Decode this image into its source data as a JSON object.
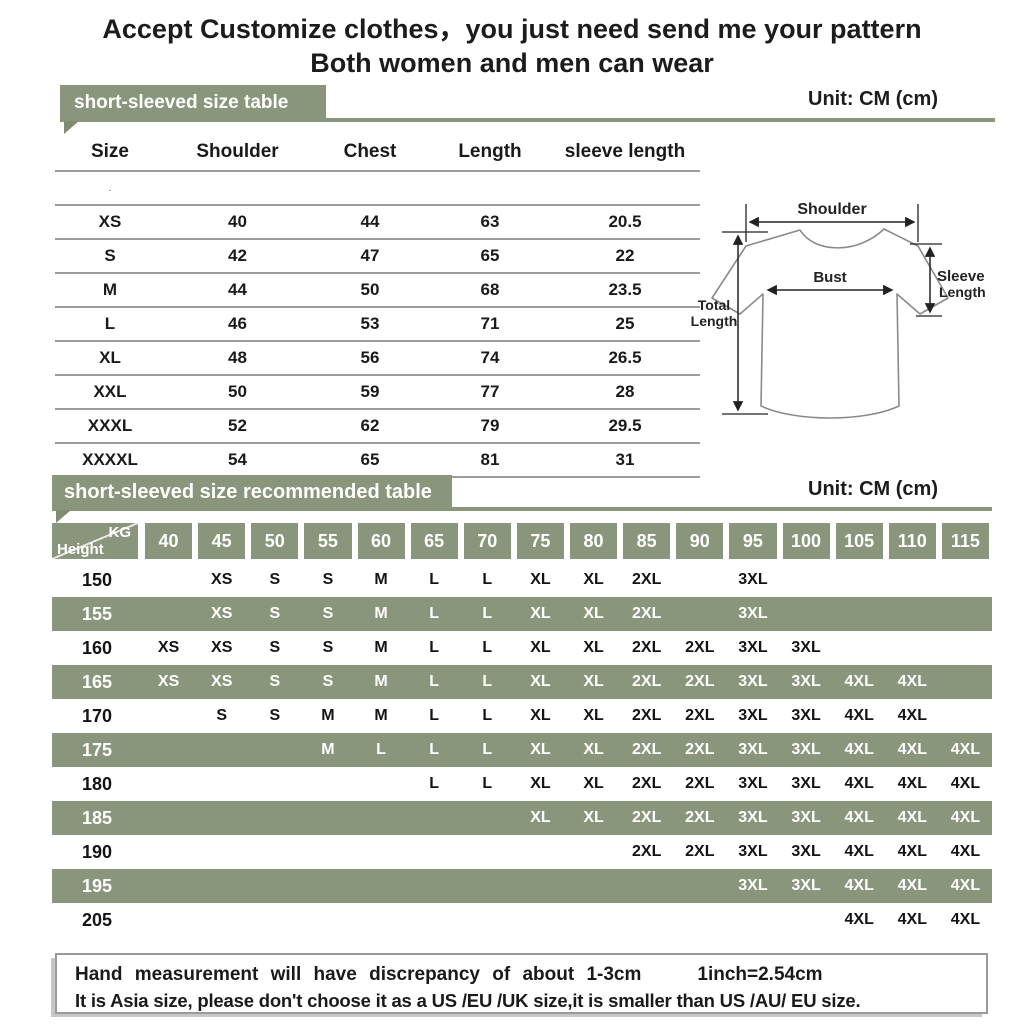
{
  "title": {
    "line1": "Accept Customize clothes，you just need send me your pattern",
    "line2": "Both women and men can wear"
  },
  "size_table": {
    "heading": "short-sleeved size table",
    "unit": "Unit: CM (cm)",
    "columns": [
      "Size",
      "Shoulder",
      "Chest",
      "Length",
      "sleeve length"
    ],
    "blank_dot": ".",
    "rows": [
      {
        "size": "XS",
        "shoulder": "40",
        "chest": "44",
        "length": "63",
        "sleeve": "20.5"
      },
      {
        "size": "S",
        "shoulder": "42",
        "chest": "47",
        "length": "65",
        "sleeve": "22"
      },
      {
        "size": "M",
        "shoulder": "44",
        "chest": "50",
        "length": "68",
        "sleeve": "23.5"
      },
      {
        "size": "L",
        "shoulder": "46",
        "chest": "53",
        "length": "71",
        "sleeve": "25"
      },
      {
        "size": "XL",
        "shoulder": "48",
        "chest": "56",
        "length": "74",
        "sleeve": "26.5"
      },
      {
        "size": "XXL",
        "shoulder": "50",
        "chest": "59",
        "length": "77",
        "sleeve": "28"
      },
      {
        "size": "XXXL",
        "shoulder": "52",
        "chest": "62",
        "length": "79",
        "sleeve": "29.5"
      },
      {
        "size": "XXXXL",
        "shoulder": "54",
        "chest": "65",
        "length": "81",
        "sleeve": "31"
      }
    ]
  },
  "diagram": {
    "shoulder": "Shoulder",
    "bust": "Bust",
    "sleeve_line1": "Sleeve",
    "sleeve_line2": "Length",
    "total_line1": "Total",
    "total_line2": "Length"
  },
  "recommended_table": {
    "heading": "short-sleeved size recommended table",
    "unit": "Unit: CM (cm)",
    "corner": {
      "top": "KG",
      "bottom": "Height"
    },
    "kg_columns": [
      "40",
      "45",
      "50",
      "55",
      "60",
      "65",
      "70",
      "75",
      "80",
      "85",
      "90",
      "95",
      "100",
      "105",
      "110",
      "115"
    ],
    "rows": [
      {
        "height": "150",
        "values": [
          "",
          "XS",
          "S",
          "S",
          "M",
          "L",
          "L",
          "XL",
          "XL",
          "2XL",
          "",
          "3XL",
          "",
          "",
          "",
          ""
        ]
      },
      {
        "height": "155",
        "values": [
          "",
          "XS",
          "S",
          "S",
          "M",
          "L",
          "L",
          "XL",
          "XL",
          "2XL",
          "",
          "3XL",
          "",
          "",
          "",
          ""
        ]
      },
      {
        "height": "160",
        "values": [
          "XS",
          "XS",
          "S",
          "S",
          "M",
          "L",
          "L",
          "XL",
          "XL",
          "2XL",
          "2XL",
          "3XL",
          "3XL",
          "",
          "",
          ""
        ]
      },
      {
        "height": "165",
        "values": [
          "XS",
          "XS",
          "S",
          "S",
          "M",
          "L",
          "L",
          "XL",
          "XL",
          "2XL",
          "2XL",
          "3XL",
          "3XL",
          "4XL",
          "4XL",
          ""
        ]
      },
      {
        "height": "170",
        "values": [
          "",
          "S",
          "S",
          "M",
          "M",
          "L",
          "L",
          "XL",
          "XL",
          "2XL",
          "2XL",
          "3XL",
          "3XL",
          "4XL",
          "4XL",
          ""
        ]
      },
      {
        "height": "175",
        "values": [
          "",
          "",
          "",
          "M",
          "L",
          "L",
          "L",
          "XL",
          "XL",
          "2XL",
          "2XL",
          "3XL",
          "3XL",
          "4XL",
          "4XL",
          "4XL"
        ]
      },
      {
        "height": "180",
        "values": [
          "",
          "",
          "",
          "",
          "",
          "L",
          "L",
          "XL",
          "XL",
          "2XL",
          "2XL",
          "3XL",
          "3XL",
          "4XL",
          "4XL",
          "4XL"
        ]
      },
      {
        "height": "185",
        "values": [
          "",
          "",
          "",
          "",
          "",
          "",
          "",
          "XL",
          "XL",
          "2XL",
          "2XL",
          "3XL",
          "3XL",
          "4XL",
          "4XL",
          "4XL"
        ]
      },
      {
        "height": "190",
        "values": [
          "",
          "",
          "",
          "",
          "",
          "",
          "",
          "",
          "",
          "2XL",
          "2XL",
          "3XL",
          "3XL",
          "4XL",
          "4XL",
          "4XL"
        ]
      },
      {
        "height": "195",
        "values": [
          "",
          "",
          "",
          "",
          "",
          "",
          "",
          "",
          "",
          "",
          "",
          "3XL",
          "3XL",
          "4XL",
          "4XL",
          "4XL"
        ]
      },
      {
        "height": "205",
        "values": [
          "",
          "",
          "",
          "",
          "",
          "",
          "",
          "",
          "",
          "",
          "",
          "",
          "",
          "4XL",
          "4XL",
          "4XL"
        ]
      }
    ]
  },
  "footer": {
    "line1_left": "Hand measurement will have discrepancy of about 1-3cm",
    "line1_right": "1inch=2.54cm",
    "line2": "It is Asia size, please don't choose it as a US /EU /UK size,it is smaller than US /AU/ EU size."
  },
  "colors": {
    "green": "#8a967c"
  }
}
